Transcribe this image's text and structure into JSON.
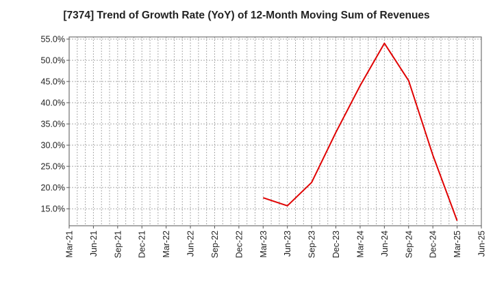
{
  "chart_data": {
    "type": "line",
    "title": "[7374]  Trend of Growth Rate (YoY) of 12-Month Moving Sum of Revenues",
    "xlabel": "",
    "ylabel": "",
    "x_ticks": [
      "Mar-21",
      "Jun-21",
      "Sep-21",
      "Dec-21",
      "Mar-22",
      "Jun-22",
      "Sep-22",
      "Dec-22",
      "Mar-23",
      "Jun-23",
      "Sep-23",
      "Dec-23",
      "Mar-24",
      "Jun-24",
      "Sep-24",
      "Dec-24",
      "Mar-25",
      "Jun-25"
    ],
    "y_ticks": [
      "15.0%",
      "20.0%",
      "25.0%",
      "30.0%",
      "35.0%",
      "40.0%",
      "45.0%",
      "50.0%",
      "55.0%"
    ],
    "ylim": [
      11,
      55.5
    ],
    "grid": true,
    "line_color": "#e00000",
    "series": [
      {
        "x": [
          "Mar-23",
          "Jun-23",
          "Sep-23",
          "Dec-23",
          "Mar-24",
          "Jun-24",
          "Sep-24",
          "Dec-24",
          "Mar-25"
        ],
        "values": [
          17.6,
          15.7,
          21.2,
          33.0,
          44.0,
          54.0,
          45.2,
          27.6,
          12.2
        ]
      }
    ]
  }
}
